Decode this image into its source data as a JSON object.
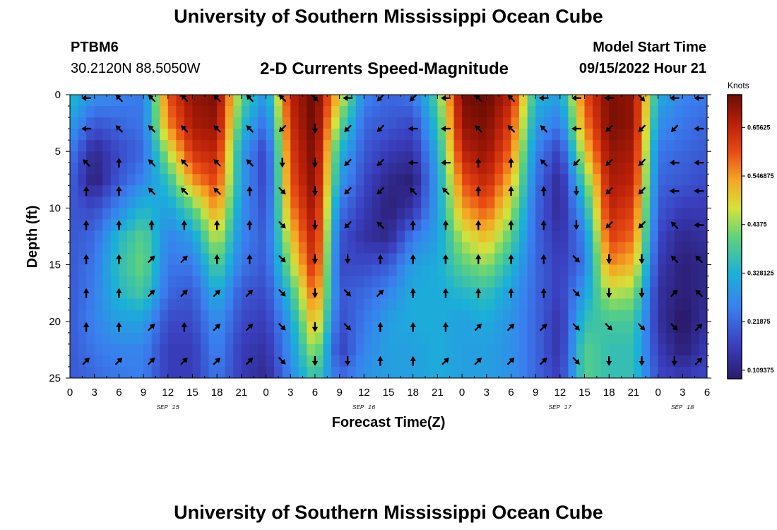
{
  "header": {
    "main_title": "University of Southern Mississippi Ocean Cube",
    "station_id": "PTBM6",
    "coordinates": "30.2120N  88.5050W",
    "chart_title": "2-D Currents Speed-Magnitude",
    "model_label": "Model Start Time",
    "model_time": "09/15/2022 Hour 21"
  },
  "footer": {
    "title": "University of Southern Mississippi Ocean Cube"
  },
  "chart_data": {
    "type": "heatmap",
    "title": "2-D Currents Speed-Magnitude",
    "xlabel": "Forecast Time(Z)",
    "ylabel": "Depth (ft)",
    "x_range_hours": [
      0,
      78
    ],
    "y_range_ft": [
      0,
      25
    ],
    "x_tick_labels": [
      "0",
      "3",
      "6",
      "9",
      "12",
      "15",
      "18",
      "21",
      "0",
      "3",
      "6",
      "9",
      "12",
      "15",
      "18",
      "21",
      "0",
      "3",
      "6",
      "9",
      "12",
      "15",
      "18",
      "21",
      "0",
      "3",
      "6"
    ],
    "y_ticks": [
      0,
      5,
      10,
      15,
      20,
      25
    ],
    "date_labels": [
      {
        "label": "SEP 15",
        "hour": 12
      },
      {
        "label": "SEP 16",
        "hour": 36
      },
      {
        "label": "SEP 17",
        "hour": 60
      },
      {
        "label": "SEP 18",
        "hour": 75
      }
    ],
    "colorbar": {
      "unit": "Knots",
      "min": 0.09,
      "max": 0.73,
      "ticks": [
        0.65625,
        0.546875,
        0.4375,
        0.328125,
        0.21875,
        0.109375
      ],
      "tick_labels": [
        "0.65625",
        "0.546875",
        "0.4375",
        "0.328125",
        "0.21875",
        "0.109375"
      ]
    },
    "speed_anchors": {
      "depths_ft": [
        0,
        2.5,
        5,
        7.5,
        10,
        12.5,
        15,
        17.5,
        20,
        22.5,
        25
      ],
      "hours": [
        0,
        3,
        6,
        9,
        12,
        15,
        18,
        21,
        24,
        27,
        30,
        33,
        36,
        39,
        42,
        45,
        48,
        51,
        54,
        57,
        60,
        63,
        66,
        69,
        72,
        75,
        78
      ],
      "by_hour": [
        [
          0.35,
          0.3,
          0.25,
          0.22,
          0.2,
          0.2,
          0.2,
          0.2,
          0.2,
          0.2,
          0.2
        ],
        [
          0.28,
          0.2,
          0.12,
          0.1,
          0.18,
          0.22,
          0.24,
          0.25,
          0.26,
          0.24,
          0.22
        ],
        [
          0.26,
          0.22,
          0.18,
          0.2,
          0.26,
          0.34,
          0.36,
          0.34,
          0.3,
          0.26,
          0.24
        ],
        [
          0.24,
          0.24,
          0.22,
          0.26,
          0.34,
          0.4,
          0.42,
          0.38,
          0.3,
          0.26,
          0.25
        ],
        [
          0.6,
          0.56,
          0.46,
          0.36,
          0.3,
          0.26,
          0.24,
          0.22,
          0.18,
          0.16,
          0.16
        ],
        [
          0.7,
          0.68,
          0.64,
          0.55,
          0.4,
          0.3,
          0.24,
          0.2,
          0.18,
          0.16,
          0.16
        ],
        [
          0.72,
          0.7,
          0.66,
          0.62,
          0.56,
          0.48,
          0.4,
          0.33,
          0.28,
          0.26,
          0.24
        ],
        [
          0.4,
          0.36,
          0.3,
          0.3,
          0.28,
          0.26,
          0.24,
          0.2,
          0.18,
          0.16,
          0.16
        ],
        [
          0.28,
          0.22,
          0.16,
          0.16,
          0.18,
          0.2,
          0.2,
          0.18,
          0.16,
          0.14,
          0.12
        ],
        [
          0.66,
          0.64,
          0.62,
          0.6,
          0.56,
          0.5,
          0.44,
          0.36,
          0.3,
          0.28,
          0.26
        ],
        [
          0.74,
          0.74,
          0.73,
          0.72,
          0.7,
          0.68,
          0.66,
          0.6,
          0.54,
          0.46,
          0.38
        ],
        [
          0.5,
          0.42,
          0.34,
          0.3,
          0.24,
          0.2,
          0.18,
          0.2,
          0.18,
          0.16,
          0.22
        ],
        [
          0.26,
          0.22,
          0.2,
          0.18,
          0.16,
          0.14,
          0.18,
          0.22,
          0.24,
          0.26,
          0.28
        ],
        [
          0.22,
          0.2,
          0.16,
          0.12,
          0.1,
          0.12,
          0.2,
          0.26,
          0.3,
          0.3,
          0.3
        ],
        [
          0.24,
          0.18,
          0.14,
          0.1,
          0.14,
          0.24,
          0.3,
          0.32,
          0.32,
          0.3,
          0.3
        ],
        [
          0.4,
          0.36,
          0.32,
          0.3,
          0.3,
          0.3,
          0.32,
          0.32,
          0.32,
          0.32,
          0.32
        ],
        [
          0.72,
          0.7,
          0.66,
          0.6,
          0.54,
          0.46,
          0.4,
          0.34,
          0.3,
          0.3,
          0.3
        ],
        [
          0.74,
          0.72,
          0.7,
          0.66,
          0.6,
          0.52,
          0.44,
          0.36,
          0.32,
          0.3,
          0.3
        ],
        [
          0.66,
          0.62,
          0.58,
          0.52,
          0.46,
          0.4,
          0.34,
          0.3,
          0.28,
          0.28,
          0.28
        ],
        [
          0.34,
          0.3,
          0.26,
          0.24,
          0.22,
          0.22,
          0.22,
          0.22,
          0.22,
          0.22,
          0.22
        ],
        [
          0.3,
          0.24,
          0.16,
          0.12,
          0.12,
          0.14,
          0.16,
          0.16,
          0.14,
          0.14,
          0.16
        ],
        [
          0.6,
          0.56,
          0.5,
          0.4,
          0.32,
          0.26,
          0.24,
          0.3,
          0.36,
          0.4,
          0.4
        ],
        [
          0.72,
          0.72,
          0.7,
          0.68,
          0.66,
          0.62,
          0.56,
          0.46,
          0.38,
          0.36,
          0.36
        ],
        [
          0.7,
          0.7,
          0.68,
          0.66,
          0.62,
          0.58,
          0.52,
          0.44,
          0.38,
          0.36,
          0.36
        ],
        [
          0.32,
          0.28,
          0.24,
          0.22,
          0.2,
          0.18,
          0.16,
          0.14,
          0.14,
          0.16,
          0.18
        ],
        [
          0.26,
          0.24,
          0.22,
          0.2,
          0.16,
          0.12,
          0.1,
          0.1,
          0.08,
          0.1,
          0.16
        ],
        [
          0.24,
          0.22,
          0.2,
          0.18,
          0.16,
          0.14,
          0.12,
          0.12,
          0.14,
          0.16,
          0.18
        ]
      ]
    },
    "direction_arrows": {
      "hours": [
        2,
        6,
        10,
        14,
        18,
        22,
        26,
        30,
        34,
        38,
        42,
        46,
        50,
        54,
        58,
        62,
        66,
        70,
        74,
        77
      ],
      "depths_ft": [
        0.3,
        3,
        6,
        8.5,
        11.5,
        14.5,
        17.5,
        20.5,
        23.5
      ],
      "directions_deg": [
        [
          270,
          315,
          315,
          315,
          315,
          315,
          315,
          135,
          270,
          225,
          225,
          270,
          315,
          315,
          270,
          270,
          270,
          135,
          270,
          270
        ],
        [
          270,
          315,
          315,
          315,
          315,
          315,
          225,
          180,
          225,
          225,
          270,
          270,
          315,
          315,
          315,
          270,
          225,
          225,
          225,
          270
        ],
        [
          315,
          0,
          315,
          315,
          315,
          315,
          180,
          180,
          225,
          225,
          270,
          270,
          0,
          0,
          315,
          225,
          225,
          225,
          270,
          270
        ],
        [
          0,
          0,
          315,
          315,
          315,
          0,
          135,
          180,
          225,
          225,
          315,
          315,
          0,
          0,
          0,
          180,
          225,
          225,
          270,
          270
        ],
        [
          0,
          0,
          0,
          0,
          0,
          0,
          135,
          180,
          225,
          315,
          0,
          0,
          0,
          0,
          0,
          180,
          225,
          225,
          315,
          270
        ],
        [
          0,
          0,
          45,
          45,
          0,
          0,
          135,
          180,
          180,
          0,
          0,
          0,
          0,
          0,
          0,
          135,
          180,
          180,
          315,
          315
        ],
        [
          0,
          0,
          45,
          45,
          45,
          45,
          135,
          180,
          135,
          45,
          0,
          0,
          0,
          0,
          0,
          135,
          180,
          180,
          45,
          315
        ],
        [
          0,
          0,
          45,
          0,
          45,
          45,
          135,
          180,
          135,
          0,
          0,
          0,
          45,
          45,
          45,
          135,
          135,
          135,
          135,
          45
        ],
        [
          45,
          45,
          45,
          45,
          45,
          45,
          135,
          180,
          180,
          0,
          0,
          45,
          45,
          45,
          45,
          135,
          180,
          180,
          180,
          45
        ]
      ]
    }
  }
}
